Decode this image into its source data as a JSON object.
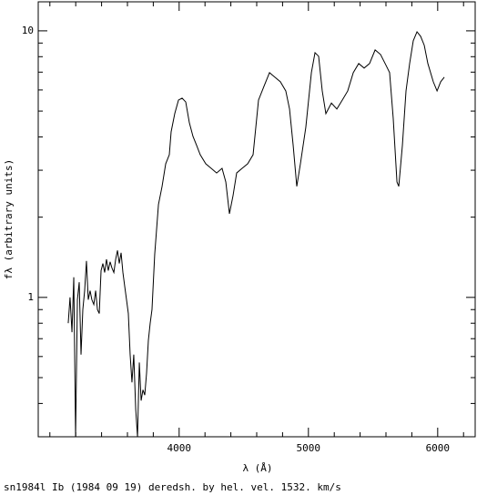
{
  "chart_data": {
    "type": "line",
    "title": "sn1984l Ib (1984 09 19) deredsh. by hel. vel.  1532. km/s",
    "xlabel": "λ (Å)",
    "ylabel": "fλ (arbitrary units)",
    "log_y": true,
    "xlim": [
      2910,
      6290
    ],
    "ylim": [
      0.3,
      12.85
    ],
    "xticks": [
      4000,
      5000,
      6000
    ],
    "xminor": [
      3000,
      3200,
      3400,
      3600,
      3800,
      4200,
      4400,
      4600,
      4800,
      5200,
      5400,
      5600,
      5800,
      6200
    ],
    "yticks": [
      1,
      10
    ],
    "yminor": [
      0.4,
      0.5,
      0.6,
      0.7,
      0.8,
      0.9,
      2,
      3,
      4,
      5,
      6,
      7,
      8,
      9
    ],
    "series": [
      {
        "color": "#000000",
        "x": [
          3142,
          3156,
          3171,
          3185,
          3199,
          3213,
          3227,
          3241,
          3255,
          3269,
          3283,
          3297,
          3311,
          3325,
          3340,
          3354,
          3368,
          3382,
          3396,
          3410,
          3424,
          3438,
          3452,
          3466,
          3480,
          3495,
          3509,
          3523,
          3537,
          3551,
          3565,
          3579,
          3593,
          3607,
          3621,
          3635,
          3649,
          3664,
          3678,
          3692,
          3706,
          3720,
          3734,
          3748,
          3762,
          3776,
          3790,
          3811,
          3840,
          3868,
          3896,
          3924,
          3938,
          3966,
          3995,
          4023,
          4051,
          4079,
          4107,
          4135,
          4163,
          4206,
          4248,
          4290,
          4332,
          4361,
          4389,
          4417,
          4445,
          4487,
          4530,
          4572,
          4614,
          4656,
          4699,
          4741,
          4783,
          4825,
          4854,
          4882,
          4910,
          4938,
          4980,
          5023,
          5051,
          5079,
          5107,
          5135,
          5178,
          5220,
          5262,
          5304,
          5347,
          5389,
          5431,
          5473,
          5516,
          5558,
          5600,
          5628,
          5656,
          5685,
          5699,
          5727,
          5755,
          5783,
          5811,
          5840,
          5868,
          5896,
          5924,
          5966,
          5995,
          6023,
          6051
        ],
        "values": [
          0.8,
          1.0,
          0.74,
          1.19,
          0.3,
          0.98,
          1.14,
          0.61,
          0.9,
          1.06,
          1.37,
          0.98,
          1.06,
          0.98,
          0.94,
          1.06,
          0.9,
          0.87,
          1.26,
          1.34,
          1.24,
          1.39,
          1.26,
          1.36,
          1.29,
          1.24,
          1.39,
          1.5,
          1.34,
          1.47,
          1.24,
          1.1,
          0.98,
          0.87,
          0.61,
          0.48,
          0.61,
          0.38,
          0.3,
          0.57,
          0.41,
          0.45,
          0.43,
          0.52,
          0.69,
          0.8,
          0.9,
          1.45,
          2.23,
          2.61,
          3.17,
          3.43,
          4.18,
          4.89,
          5.5,
          5.59,
          5.41,
          4.52,
          4.02,
          3.72,
          3.43,
          3.17,
          3.05,
          2.93,
          3.05,
          2.71,
          2.06,
          2.41,
          2.93,
          3.05,
          3.17,
          3.43,
          5.5,
          6.19,
          6.97,
          6.7,
          6.44,
          5.95,
          5.09,
          3.72,
          2.61,
          3.17,
          4.35,
          6.97,
          8.28,
          8.03,
          5.95,
          4.89,
          5.36,
          5.09,
          5.5,
          5.95,
          6.97,
          7.54,
          7.25,
          7.54,
          8.48,
          8.15,
          7.43,
          6.97,
          4.7,
          2.71,
          2.61,
          3.72,
          5.95,
          7.54,
          9.18,
          9.92,
          9.54,
          8.83,
          7.54,
          6.44,
          5.95,
          6.44,
          6.7
        ]
      }
    ]
  }
}
